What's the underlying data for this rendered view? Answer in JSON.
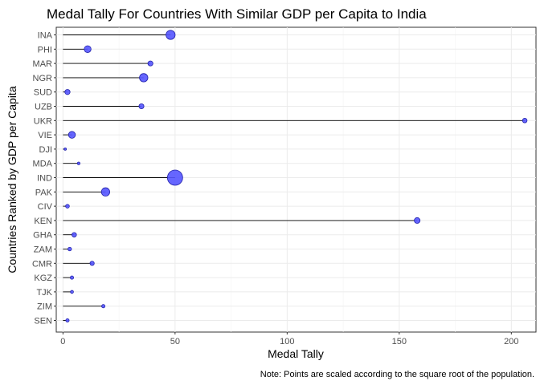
{
  "chart_data": {
    "type": "scatter",
    "title": "Medal Tally For Countries With Similar GDP per Capita to India",
    "xlabel": "Medal Tally",
    "ylabel": "Countries Ranked by GDP per Capita",
    "caption": "Note: Points are scaled according to the square root of the population.",
    "xlim": [
      -3,
      211
    ],
    "x_ticks": [
      0,
      50,
      100,
      150,
      200
    ],
    "grid": true,
    "point_color": "#5555ff",
    "point_stroke": "#2222aa",
    "segment_color": "#000000",
    "categories": [
      "INA",
      "PHI",
      "MAR",
      "NGR",
      "SUD",
      "UZB",
      "UKR",
      "VIE",
      "DJI",
      "MDA",
      "IND",
      "PAK",
      "CIV",
      "KEN",
      "GHA",
      "ZAM",
      "CMR",
      "KGZ",
      "TJK",
      "ZIM",
      "SEN"
    ],
    "values": [
      48,
      11,
      39,
      36,
      2,
      35,
      206,
      4,
      1,
      7,
      50,
      19,
      2,
      158,
      5,
      3,
      13,
      4,
      4,
      18,
      2
    ],
    "relative_point_size": [
      0.6,
      0.45,
      0.33,
      0.55,
      0.34,
      0.33,
      0.3,
      0.45,
      0.1,
      0.18,
      1.0,
      0.55,
      0.25,
      0.38,
      0.3,
      0.24,
      0.28,
      0.22,
      0.2,
      0.22,
      0.22
    ]
  }
}
